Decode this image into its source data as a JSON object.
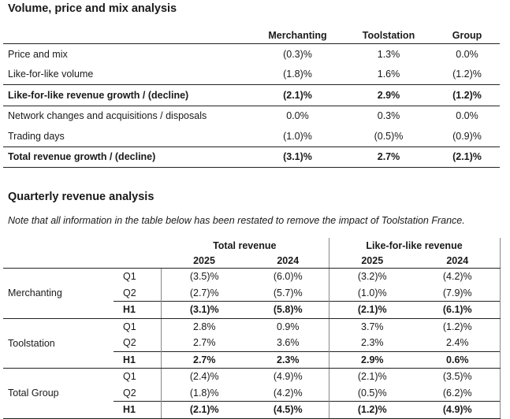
{
  "volume": {
    "title": "Volume, price and mix analysis",
    "columns": [
      "Merchanting",
      "Toolstation",
      "Group"
    ],
    "rows": [
      {
        "label": "Price and mix",
        "values": [
          "(0.3)%",
          "1.3%",
          "0.0%"
        ]
      },
      {
        "label": "Like-for-like volume",
        "values": [
          "(1.8)%",
          "1.6%",
          "(1.2)%"
        ]
      },
      {
        "label": "Like-for-like revenue growth / (decline)",
        "values": [
          "(2.1)%",
          "2.9%",
          "(1.2)%"
        ]
      },
      {
        "label": "Network changes and acquisitions / disposals",
        "values": [
          "0.0%",
          "0.3%",
          "0.0%"
        ]
      },
      {
        "label": "Trading days",
        "values": [
          "(1.0)%",
          "(0.5)%",
          "(0.9)%"
        ]
      },
      {
        "label": "Total revenue growth / (decline)",
        "values": [
          "(3.1)%",
          "2.7%",
          "(2.1)%"
        ]
      }
    ]
  },
  "quarterly": {
    "title": "Quarterly revenue analysis",
    "note": "Note that all information in the table below has been restated to remove the impact of Toolstation France.",
    "group_headers": [
      "Total revenue",
      "Like-for-like revenue"
    ],
    "years": [
      "2025",
      "2024",
      "2025",
      "2024"
    ],
    "segments": [
      {
        "name": "Merchanting",
        "rows": [
          {
            "period": "Q1",
            "values": [
              "(3.5)%",
              "(6.0)%",
              "(3.2)%",
              "(4.2)%"
            ]
          },
          {
            "period": "Q2",
            "values": [
              "(2.7)%",
              "(5.7)%",
              "(1.0)%",
              "(7.9)%"
            ]
          },
          {
            "period": "H1",
            "values": [
              "(3.1)%",
              "(5.8)%",
              "(2.1)%",
              "(6.1)%"
            ]
          }
        ]
      },
      {
        "name": "Toolstation",
        "rows": [
          {
            "period": "Q1",
            "values": [
              "2.8%",
              "0.9%",
              "3.7%",
              "(1.2)%"
            ]
          },
          {
            "period": "Q2",
            "values": [
              "2.7%",
              "3.6%",
              "2.3%",
              "2.4%"
            ]
          },
          {
            "period": "H1",
            "values": [
              "2.7%",
              "2.3%",
              "2.9%",
              "0.6%"
            ]
          }
        ]
      },
      {
        "name": "Total Group",
        "rows": [
          {
            "period": "Q1",
            "values": [
              "(2.4)%",
              "(4.9)%",
              "(2.1)%",
              "(3.5)%"
            ]
          },
          {
            "period": "Q2",
            "values": [
              "(1.8)%",
              "(4.2)%",
              "(0.5)%",
              "(6.2)%"
            ]
          },
          {
            "period": "H1",
            "values": [
              "(2.1)%",
              "(4.5)%",
              "(1.2)%",
              "(4.9)%"
            ]
          }
        ]
      }
    ]
  }
}
